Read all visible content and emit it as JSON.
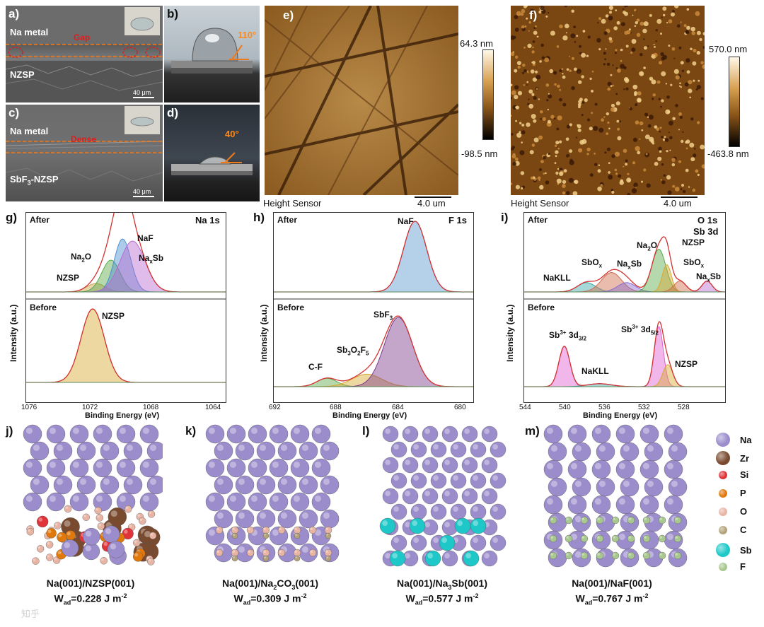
{
  "panels": {
    "a": {
      "label": "a)",
      "layer_top": "Na metal",
      "layer_bottom": "NZSP",
      "annotation": "Gap",
      "scale": "40 μm"
    },
    "b": {
      "label": "b)",
      "angle": "110°"
    },
    "c": {
      "label": "c)",
      "layer_top": "Na metal",
      "layer_bottom": "SbF",
      "layer_bottom_sub": "3",
      "layer_bottom_suffix": "-NZSP",
      "annotation": "Dense",
      "scale": "40 μm"
    },
    "d": {
      "label": "d)",
      "angle": "40°"
    },
    "e": {
      "label": "e)",
      "scale_max": "64.3 nm",
      "scale_min": "-98.5 nm",
      "sensor": "Height Sensor",
      "scalebar": "4.0 um"
    },
    "f": {
      "label": "f)",
      "scale_max": "570.0 nm",
      "scale_min": "-463.8 nm",
      "sensor": "Height Sensor",
      "scalebar": "4.0 um"
    }
  },
  "xps": {
    "y_axis_title": "Intensity (a.u.)",
    "x_axis_title": "Binding Energy (eV)",
    "after": "After",
    "before": "Before",
    "g": {
      "label": "g)",
      "title": "Na 1s",
      "ticks": [
        "1076",
        "1072",
        "1068",
        "1064"
      ],
      "after_peaks": [
        "NaF",
        "Na",
        "2",
        "O",
        "NZSP",
        "Na",
        "x",
        "Sb"
      ],
      "before_peak": "NZSP"
    },
    "h": {
      "label": "h)",
      "title": "F 1s",
      "ticks": [
        "692",
        "688",
        "684",
        "680"
      ],
      "after_peak": "NaF",
      "before_peaks": [
        "SbF",
        "3",
        "C-F",
        "Sb",
        "3",
        "O",
        "2",
        "F",
        "5"
      ]
    },
    "i": {
      "label": "i)",
      "title_1": "O 1s",
      "title_2": "Sb 3d",
      "ticks": [
        "544",
        "540",
        "536",
        "532",
        "528"
      ],
      "after_peaks": [
        "NaKLL",
        "SbO",
        "x",
        "Na",
        "2",
        "O",
        "NZSP",
        "SbO",
        "x",
        "Na",
        "x",
        "Sb",
        "Na",
        "x",
        "Sb"
      ],
      "before_peaks": [
        "Sb",
        "3+",
        "3d",
        "3/2",
        "Sb",
        "3+",
        "3d",
        "5/2",
        "NaKLL",
        "NZSP"
      ]
    }
  },
  "chart_data": [
    {
      "type": "line",
      "panel": "g",
      "title": "Na 1s",
      "xlabel": "Binding Energy (eV)",
      "ylabel": "Intensity (a.u.)",
      "xlim": [
        1076,
        1064
      ],
      "series": [
        {
          "name": "After - NZSP",
          "center": 1071.8
        },
        {
          "name": "After - Na2O",
          "center": 1070.9
        },
        {
          "name": "After - NaF",
          "center": 1070.2
        },
        {
          "name": "After - NaxSb",
          "center": 1069.6
        },
        {
          "name": "Before - NZSP",
          "center": 1072.0
        }
      ]
    },
    {
      "type": "line",
      "panel": "h",
      "title": "F 1s",
      "xlabel": "Binding Energy (eV)",
      "ylabel": "Intensity (a.u.)",
      "xlim": [
        692,
        680
      ],
      "series": [
        {
          "name": "After - NaF",
          "center": 683.5
        },
        {
          "name": "Before - C-F",
          "center": 688.8
        },
        {
          "name": "Before - Sb3O2F5",
          "center": 686.4
        },
        {
          "name": "Before - SbF3",
          "center": 684.5
        }
      ]
    },
    {
      "type": "line",
      "panel": "i",
      "title": "O 1s / Sb 3d",
      "xlabel": "Binding Energy (eV)",
      "ylabel": "Intensity (a.u.)",
      "xlim": [
        544,
        524
      ],
      "series": [
        {
          "name": "After - NaKLL",
          "center": 537.8
        },
        {
          "name": "After - SbOx",
          "center": 535.3
        },
        {
          "name": "After - NaxSb",
          "center": 533.8
        },
        {
          "name": "After - Na2O",
          "center": 530.6
        },
        {
          "name": "After - NZSP",
          "center": 529.8
        },
        {
          "name": "After - SbOx",
          "center": 528.5
        },
        {
          "name": "After - NaxSb",
          "center": 525.8
        },
        {
          "name": "Before - Sb3+ 3d3/2",
          "center": 540.0
        },
        {
          "name": "Before - NaKLL",
          "center": 536.5
        },
        {
          "name": "Before - Sb3+ 3d5/2",
          "center": 530.6
        },
        {
          "name": "Before - NZSP",
          "center": 529.7
        }
      ]
    }
  ],
  "structures": {
    "j": {
      "label": "j)",
      "caption": "Na(001)/NZSP(001)",
      "w_prefix": "W",
      "w_sub": "ad",
      "w_value": "=0.228 J m",
      "w_exp": "-2"
    },
    "k": {
      "label": "k)",
      "caption_1": "Na(001)/Na",
      "caption_sub1": "2",
      "caption_2": "CO",
      "caption_sub2": "3",
      "caption_3": "(001)",
      "w_prefix": "W",
      "w_sub": "ad",
      "w_value": "=0.309 J m",
      "w_exp": "-2"
    },
    "l": {
      "label": "l)",
      "caption_1": "Na(001)/Na",
      "caption_sub1": "3",
      "caption_2": "Sb(001)",
      "w_prefix": "W",
      "w_sub": "ad",
      "w_value": "=0.577 J m",
      "w_exp": "-2"
    },
    "m": {
      "label": "m)",
      "caption": "Na(001)/NaF(001)",
      "w_prefix": "W",
      "w_sub": "ad",
      "w_value": "=0.767 J m",
      "w_exp": "-2"
    }
  },
  "legend": [
    {
      "name": "Na",
      "color": "#9b8ccc"
    },
    {
      "name": "Zr",
      "color": "#7a4a2e"
    },
    {
      "name": "Si",
      "color": "#e0343a"
    },
    {
      "name": "P",
      "color": "#e0780c"
    },
    {
      "name": "O",
      "color": "#e8b4a4"
    },
    {
      "name": "C",
      "color": "#b3a27a"
    },
    {
      "name": "Sb",
      "color": "#1ec8c8"
    },
    {
      "name": "F",
      "color": "#a8c890"
    }
  ],
  "watermark": "知乎"
}
